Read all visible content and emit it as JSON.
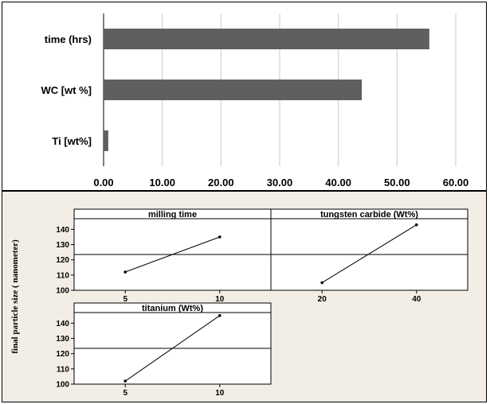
{
  "chart_data": [
    {
      "type": "bar",
      "orientation": "horizontal",
      "categories": [
        "time (hrs)",
        "WC [wt %]",
        "Ti  [wt%]"
      ],
      "values": [
        55.5,
        44.0,
        0.8
      ],
      "xlim": [
        0,
        60
      ],
      "x_ticks": [
        "0.00",
        "10.00",
        "20.00",
        "30.00",
        "40.00",
        "50.00",
        "60.00"
      ],
      "grid": "vertical",
      "bar_color": "#5f5f5f"
    },
    {
      "type": "line",
      "kind": "main effects plot",
      "ylabel": "final particle size ( nanometer)",
      "y_ticks": [
        100,
        110,
        120,
        130,
        140
      ],
      "ylim": [
        100,
        147
      ],
      "mean_line": 123.5,
      "panels": [
        {
          "title": "milling time",
          "x": [
            5,
            10
          ],
          "y": [
            112,
            135
          ],
          "x_ticks": [
            "5",
            "10"
          ]
        },
        {
          "title": "tungsten carbide (Wt%)",
          "x": [
            20,
            40
          ],
          "y": [
            105,
            143
          ],
          "x_ticks": [
            "20",
            "40"
          ]
        },
        {
          "title": "titanium (Wt%)",
          "x": [
            5,
            10
          ],
          "y": [
            102,
            145
          ],
          "x_ticks": [
            "5",
            "10"
          ]
        }
      ]
    }
  ]
}
